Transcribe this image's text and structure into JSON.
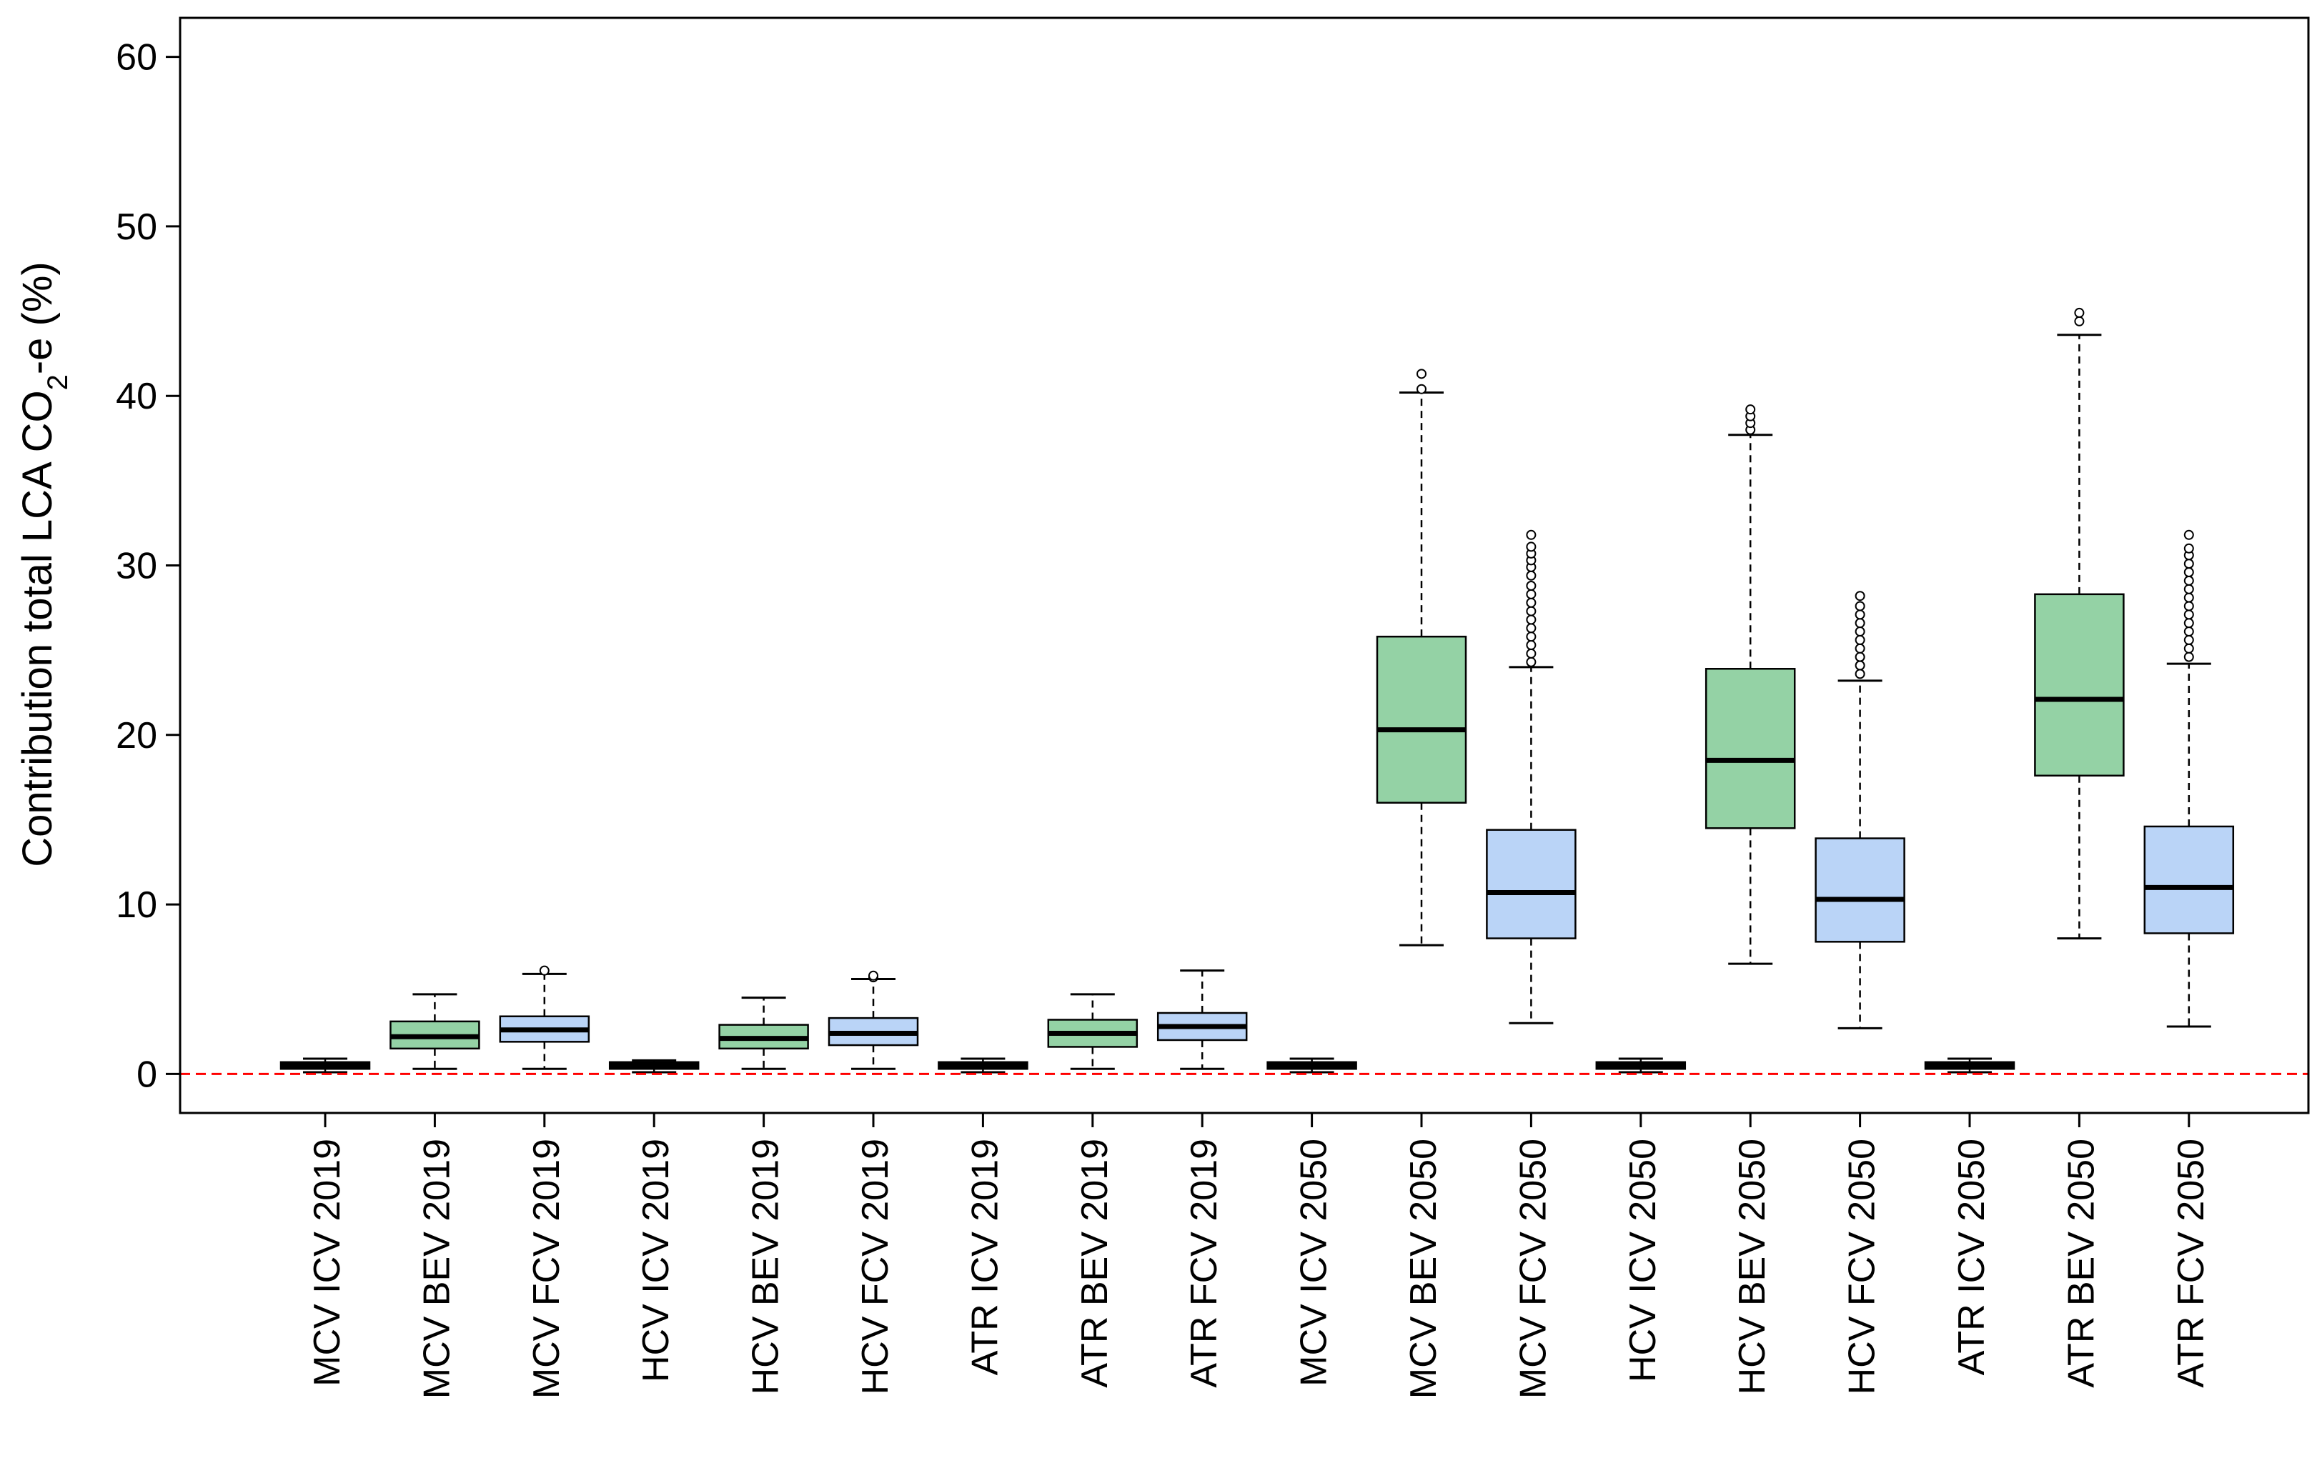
{
  "chart_data": {
    "type": "boxplot",
    "title": "",
    "xlabel": "",
    "ylabel": {
      "main": "Contribution total LCA CO",
      "subscript": "2",
      "suffix": "-e (%)"
    },
    "ylim": [
      -2.3,
      62.3
    ],
    "yticks": [
      0,
      10,
      20,
      30,
      40,
      50,
      60
    ],
    "reference_line": {
      "y": 0,
      "color": "#ff0000",
      "style": "dashed"
    },
    "colors": {
      "ICV": "#000000",
      "BEV": "#94d2a5",
      "FCV": "#bad4f7"
    },
    "categories": [
      "MCV ICV 2019",
      "MCV BEV 2019",
      "MCV FCV 2019",
      "HCV ICV 2019",
      "HCV BEV 2019",
      "HCV FCV 2019",
      "ATR ICV 2019",
      "ATR BEV 2019",
      "ATR FCV 2019",
      "MCV ICV 2050",
      "MCV BEV 2050",
      "MCV FCV 2050",
      "HCV ICV 2050",
      "HCV BEV 2050",
      "HCV FCV 2050",
      "ATR ICV 2050",
      "ATR BEV 2050",
      "ATR FCV 2050"
    ],
    "series": [
      {
        "name": "MCV ICV 2019",
        "kind": "ICV",
        "min": 0.1,
        "q1": 0.3,
        "median": 0.5,
        "q3": 0.7,
        "max": 0.9,
        "outliers": []
      },
      {
        "name": "MCV BEV 2019",
        "kind": "BEV",
        "min": 0.3,
        "q1": 1.5,
        "median": 2.2,
        "q3": 3.1,
        "max": 4.7,
        "outliers": []
      },
      {
        "name": "MCV FCV 2019",
        "kind": "FCV",
        "min": 0.3,
        "q1": 1.9,
        "median": 2.6,
        "q3": 3.4,
        "max": 5.9,
        "outliers": [
          6.1
        ]
      },
      {
        "name": "HCV ICV 2019",
        "kind": "ICV",
        "min": 0.1,
        "q1": 0.3,
        "median": 0.5,
        "q3": 0.7,
        "max": 0.8,
        "outliers": []
      },
      {
        "name": "HCV BEV 2019",
        "kind": "BEV",
        "min": 0.3,
        "q1": 1.5,
        "median": 2.1,
        "q3": 2.9,
        "max": 4.5,
        "outliers": []
      },
      {
        "name": "HCV FCV 2019",
        "kind": "FCV",
        "min": 0.3,
        "q1": 1.7,
        "median": 2.4,
        "q3": 3.3,
        "max": 5.6,
        "outliers": [
          5.7,
          5.8
        ]
      },
      {
        "name": "ATR ICV 2019",
        "kind": "ICV",
        "min": 0.1,
        "q1": 0.3,
        "median": 0.5,
        "q3": 0.7,
        "max": 0.9,
        "outliers": []
      },
      {
        "name": "ATR BEV 2019",
        "kind": "BEV",
        "min": 0.3,
        "q1": 1.6,
        "median": 2.4,
        "q3": 3.2,
        "max": 4.7,
        "outliers": []
      },
      {
        "name": "ATR FCV 2019",
        "kind": "FCV",
        "min": 0.3,
        "q1": 2.0,
        "median": 2.8,
        "q3": 3.6,
        "max": 6.1,
        "outliers": []
      },
      {
        "name": "MCV ICV 2050",
        "kind": "ICV",
        "min": 0.1,
        "q1": 0.3,
        "median": 0.5,
        "q3": 0.7,
        "max": 0.9,
        "outliers": []
      },
      {
        "name": "MCV BEV 2050",
        "kind": "BEV",
        "min": 7.6,
        "q1": 16.0,
        "median": 20.3,
        "q3": 25.8,
        "max": 40.2,
        "outliers": [
          40.4,
          41.3
        ]
      },
      {
        "name": "MCV FCV 2050",
        "kind": "FCV",
        "min": 3.0,
        "q1": 8.0,
        "median": 10.7,
        "q3": 14.4,
        "max": 24.0,
        "outliers": [
          24.3,
          24.8,
          25.3,
          25.8,
          26.3,
          26.8,
          27.3,
          27.8,
          28.3,
          28.8,
          29.4,
          29.9,
          30.3,
          30.7,
          31.1,
          31.8
        ]
      },
      {
        "name": "HCV ICV 2050",
        "kind": "ICV",
        "min": 0.1,
        "q1": 0.3,
        "median": 0.5,
        "q3": 0.7,
        "max": 0.9,
        "outliers": []
      },
      {
        "name": "HCV BEV 2050",
        "kind": "BEV",
        "min": 6.5,
        "q1": 14.5,
        "median": 18.5,
        "q3": 23.9,
        "max": 37.7,
        "outliers": [
          38.0,
          38.4,
          38.8,
          39.2
        ]
      },
      {
        "name": "HCV FCV 2050",
        "kind": "FCV",
        "min": 2.7,
        "q1": 7.8,
        "median": 10.3,
        "q3": 13.9,
        "max": 23.2,
        "outliers": [
          23.6,
          24.1,
          24.6,
          25.1,
          25.6,
          26.1,
          26.6,
          27.1,
          27.6,
          28.2
        ]
      },
      {
        "name": "ATR ICV 2050",
        "kind": "ICV",
        "min": 0.1,
        "q1": 0.3,
        "median": 0.5,
        "q3": 0.7,
        "max": 0.9,
        "outliers": []
      },
      {
        "name": "ATR BEV 2050",
        "kind": "BEV",
        "min": 8.0,
        "q1": 17.6,
        "median": 22.1,
        "q3": 28.3,
        "max": 43.6,
        "outliers": [
          44.4,
          44.9
        ]
      },
      {
        "name": "ATR FCV 2050",
        "kind": "FCV",
        "min": 2.8,
        "q1": 8.3,
        "median": 11.0,
        "q3": 14.6,
        "max": 24.2,
        "outliers": [
          24.6,
          25.1,
          25.6,
          26.1,
          26.6,
          27.1,
          27.6,
          28.1,
          28.6,
          29.1,
          29.6,
          30.1,
          30.6,
          31.0,
          31.8
        ]
      }
    ]
  }
}
